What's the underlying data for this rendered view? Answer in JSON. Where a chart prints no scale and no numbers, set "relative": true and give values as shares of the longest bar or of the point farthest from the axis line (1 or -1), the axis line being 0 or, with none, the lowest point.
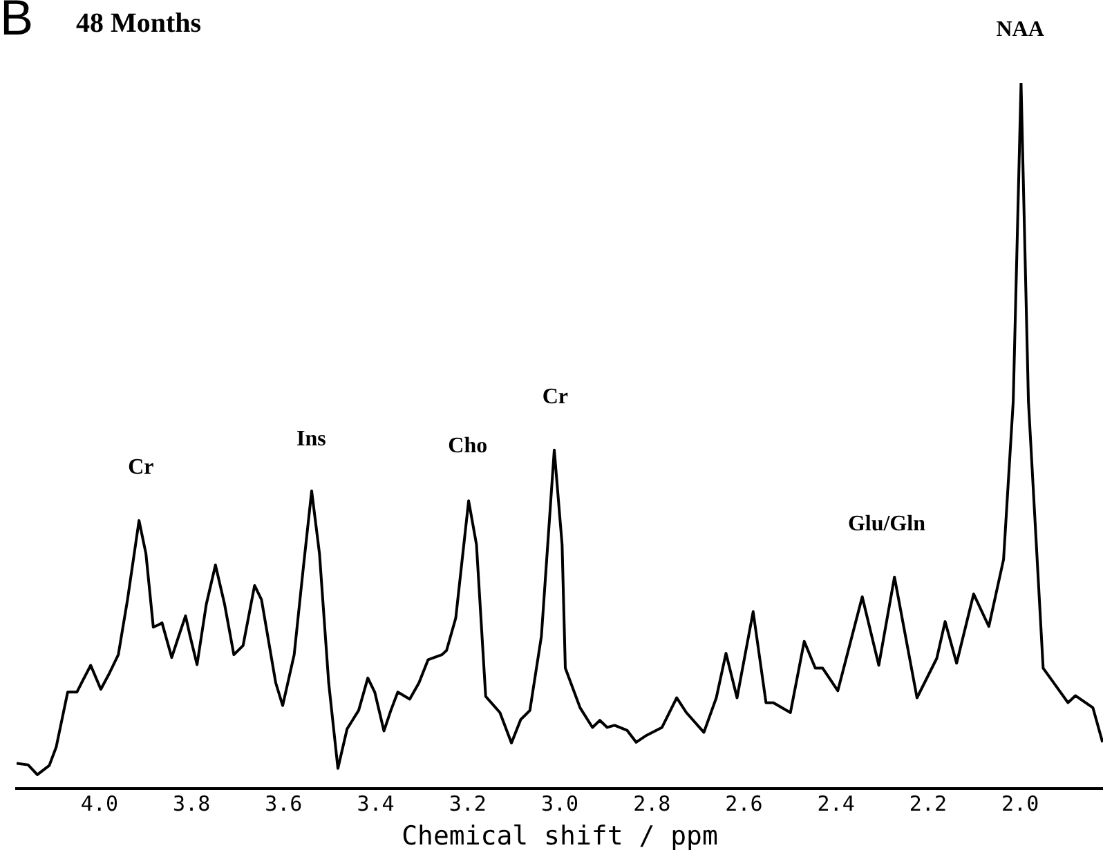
{
  "chart_data": {
    "type": "line",
    "title": "48 Months",
    "xlabel": "Chemical shift / ppm",
    "relative": true,
    "grid": false,
    "legend": false,
    "marker": "none",
    "line_style": "solid",
    "xlim": [
      4.18,
      1.82
    ],
    "xticks": [
      {
        "value": 4.0,
        "label": "4.0"
      },
      {
        "value": 3.8,
        "label": "3.8"
      },
      {
        "value": 3.6,
        "label": "3.6"
      },
      {
        "value": 3.4,
        "label": "3.4"
      },
      {
        "value": 3.2,
        "label": "3.2"
      },
      {
        "value": 3.0,
        "label": "3.0"
      },
      {
        "value": 2.8,
        "label": "2.8"
      },
      {
        "value": 2.6,
        "label": "2.6"
      },
      {
        "value": 2.4,
        "label": "2.4"
      },
      {
        "value": 2.2,
        "label": "2.2"
      },
      {
        "value": 2.0,
        "label": "2.0"
      }
    ],
    "annotations": [
      "B",
      {
        "text": "Cr",
        "x": 3.91,
        "y": 0.38
      },
      {
        "text": "Ins",
        "x": 3.54,
        "y": 0.42
      },
      {
        "text": "Cho",
        "x": 3.2,
        "y": 0.41
      },
      {
        "text": "Cr",
        "x": 3.01,
        "y": 0.48
      },
      {
        "text": "Glu/Gln",
        "x": 2.29,
        "y": 0.3
      },
      {
        "text": "NAA",
        "x": 2.0,
        "y": 1.0
      }
    ],
    "series": [
      {
        "color": "#000000",
        "x": [
          4.18,
          4.155,
          4.135,
          4.109,
          4.094,
          4.069,
          4.049,
          4.039,
          4.019,
          3.997,
          3.979,
          3.959,
          3.939,
          3.914,
          3.899,
          3.883,
          3.873,
          3.864,
          3.843,
          3.828,
          3.813,
          3.803,
          3.788,
          3.768,
          3.748,
          3.728,
          3.708,
          3.688,
          3.663,
          3.648,
          3.617,
          3.602,
          3.577,
          3.557,
          3.539,
          3.522,
          3.502,
          3.482,
          3.462,
          3.437,
          3.417,
          3.402,
          3.382,
          3.367,
          3.352,
          3.326,
          3.306,
          3.286,
          3.256,
          3.246,
          3.226,
          3.198,
          3.181,
          3.161,
          3.13,
          3.105,
          3.085,
          3.065,
          3.04,
          3.012,
          2.995,
          2.988,
          2.956,
          2.929,
          2.913,
          2.897,
          2.881,
          2.854,
          2.834,
          2.811,
          2.778,
          2.746,
          2.725,
          2.687,
          2.66,
          2.639,
          2.615,
          2.58,
          2.552,
          2.536,
          2.499,
          2.469,
          2.445,
          2.429,
          2.396,
          2.343,
          2.307,
          2.273,
          2.224,
          2.181,
          2.163,
          2.138,
          2.101,
          2.068,
          2.036,
          2.015,
          1.998,
          1.982,
          1.95,
          1.896,
          1.88,
          1.842,
          1.821
        ],
        "values": [
          0.036,
          0.034,
          0.02,
          0.033,
          0.059,
          0.137,
          0.137,
          0.15,
          0.175,
          0.141,
          0.163,
          0.19,
          0.268,
          0.38,
          0.333,
          0.229,
          0.232,
          0.235,
          0.186,
          0.216,
          0.245,
          0.216,
          0.176,
          0.261,
          0.317,
          0.261,
          0.19,
          0.203,
          0.288,
          0.268,
          0.15,
          0.118,
          0.19,
          0.314,
          0.422,
          0.333,
          0.15,
          0.029,
          0.085,
          0.111,
          0.157,
          0.137,
          0.082,
          0.111,
          0.137,
          0.127,
          0.15,
          0.183,
          0.19,
          0.196,
          0.242,
          0.408,
          0.346,
          0.131,
          0.108,
          0.065,
          0.098,
          0.111,
          0.216,
          0.48,
          0.346,
          0.171,
          0.115,
          0.087,
          0.097,
          0.087,
          0.09,
          0.083,
          0.066,
          0.076,
          0.087,
          0.129,
          0.108,
          0.08,
          0.129,
          0.192,
          0.129,
          0.251,
          0.122,
          0.122,
          0.108,
          0.209,
          0.171,
          0.171,
          0.139,
          0.272,
          0.175,
          0.3,
          0.129,
          0.185,
          0.237,
          0.178,
          0.276,
          0.23,
          0.325,
          0.549,
          1.0,
          0.549,
          0.171,
          0.122,
          0.132,
          0.115,
          0.066
        ]
      }
    ]
  }
}
